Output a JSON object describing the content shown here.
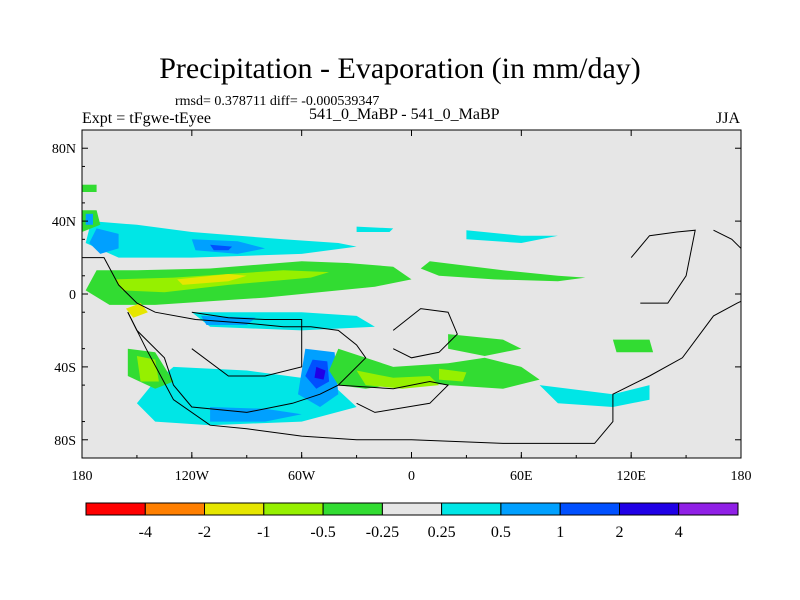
{
  "chart_data": {
    "type": "contour-map",
    "title": "Precipitation - Evaporation (in mm/day)",
    "stats": "rmsd= 0.378711 diff= -0.000539347",
    "left_label": "Expt = tFgwe-tEyee",
    "center_label": "541_0_MaBP - 541_0_MaBP",
    "right_label": "JJA",
    "x_ticks": [
      {
        "lon": -180,
        "label": "180"
      },
      {
        "lon": -120,
        "label": "120W"
      },
      {
        "lon": -60,
        "label": "60W"
      },
      {
        "lon": 0,
        "label": "0"
      },
      {
        "lon": 60,
        "label": "60E"
      },
      {
        "lon": 120,
        "label": "120E"
      },
      {
        "lon": 180,
        "label": "180"
      }
    ],
    "y_ticks": [
      {
        "lat": 80,
        "label": "80N"
      },
      {
        "lat": 40,
        "label": "40N"
      },
      {
        "lat": 0,
        "label": "0"
      },
      {
        "lat": -40,
        "label": "40S"
      },
      {
        "lat": -80,
        "label": "80S"
      }
    ],
    "xlim": [
      -180,
      180
    ],
    "ylim": [
      -90,
      90
    ],
    "colorbar": {
      "colors": [
        "#ff0000",
        "#ff7f00",
        "#e6e600",
        "#96f000",
        "#32dc32",
        "#e6e6e6",
        "#00e6e6",
        "#00a0ff",
        "#0050ff",
        "#2000e6",
        "#9020e6"
      ],
      "labels": [
        "-4",
        "-2",
        "-1",
        "-0.5",
        "-0.25",
        "0.25",
        "0.5",
        "1",
        "2",
        "4"
      ]
    },
    "background_color": "#e6e6e6",
    "features": [
      {
        "color": "#32dc32",
        "points": [
          [
            -172,
            13
          ],
          [
            -150,
            13
          ],
          [
            -110,
            14
          ],
          [
            -60,
            18
          ],
          [
            -35,
            17
          ],
          [
            -10,
            15
          ],
          [
            0,
            8
          ],
          [
            -20,
            4
          ],
          [
            -80,
            -2
          ],
          [
            -140,
            -6
          ],
          [
            -165,
            -6
          ],
          [
            -178,
            2
          ]
        ]
      },
      {
        "color": "#96f000",
        "points": [
          [
            -162,
            8
          ],
          [
            -130,
            9
          ],
          [
            -100,
            11
          ],
          [
            -70,
            13
          ],
          [
            -45,
            12
          ],
          [
            -55,
            9
          ],
          [
            -100,
            5
          ],
          [
            -135,
            1
          ],
          [
            -158,
            2
          ]
        ]
      },
      {
        "color": "#e6e600",
        "points": [
          [
            -128,
            8
          ],
          [
            -100,
            11
          ],
          [
            -90,
            10
          ],
          [
            -100,
            7
          ],
          [
            -125,
            5
          ]
        ]
      },
      {
        "color": "#e6e600",
        "points": [
          [
            -156,
            -8
          ],
          [
            -148,
            -5
          ],
          [
            -144,
            -10
          ],
          [
            -152,
            -13
          ]
        ]
      },
      {
        "color": "#32dc32",
        "points": [
          [
            10,
            18
          ],
          [
            50,
            13
          ],
          [
            80,
            10
          ],
          [
            95,
            9
          ],
          [
            80,
            7
          ],
          [
            45,
            8
          ],
          [
            15,
            10
          ],
          [
            5,
            14
          ]
        ]
      },
      {
        "color": "#00e6e6",
        "points": [
          [
            -175,
            40
          ],
          [
            -150,
            38
          ],
          [
            -120,
            34
          ],
          [
            -70,
            30
          ],
          [
            -40,
            28
          ],
          [
            -30,
            26
          ],
          [
            -60,
            22
          ],
          [
            -120,
            20
          ],
          [
            -160,
            20
          ],
          [
            -178,
            28
          ]
        ]
      },
      {
        "color": "#00a0ff",
        "points": [
          [
            -172,
            36
          ],
          [
            -160,
            33
          ],
          [
            -160,
            25
          ],
          [
            -170,
            22
          ],
          [
            -176,
            28
          ]
        ]
      },
      {
        "color": "#00a0ff",
        "points": [
          [
            -120,
            30
          ],
          [
            -95,
            29
          ],
          [
            -80,
            25
          ],
          [
            -95,
            22
          ],
          [
            -118,
            24
          ]
        ]
      },
      {
        "color": "#0050ff",
        "points": [
          [
            -110,
            27
          ],
          [
            -98,
            26
          ],
          [
            -100,
            24
          ],
          [
            -108,
            24
          ]
        ]
      },
      {
        "color": "#00e6e6",
        "points": [
          [
            -120,
            -10
          ],
          [
            -60,
            -10
          ],
          [
            -30,
            -12
          ],
          [
            -20,
            -18
          ],
          [
            -60,
            -20
          ],
          [
            -110,
            -18
          ]
        ]
      },
      {
        "color": "#00a0ff",
        "points": [
          [
            -115,
            -12
          ],
          [
            -85,
            -13
          ],
          [
            -90,
            -17
          ],
          [
            -112,
            -17
          ]
        ]
      },
      {
        "color": "#00e6e6",
        "points": [
          [
            -130,
            -40
          ],
          [
            -90,
            -42
          ],
          [
            -45,
            -48
          ],
          [
            -30,
            -62
          ],
          [
            -60,
            -70
          ],
          [
            -110,
            -72
          ],
          [
            -140,
            -70
          ],
          [
            -150,
            -60
          ],
          [
            -142,
            -50
          ]
        ]
      },
      {
        "color": "#00a0ff",
        "points": [
          [
            -110,
            -62
          ],
          [
            -80,
            -63
          ],
          [
            -60,
            -66
          ],
          [
            -80,
            -70
          ],
          [
            -110,
            -70
          ]
        ]
      },
      {
        "color": "#00a0ff",
        "points": [
          [
            -58,
            -30
          ],
          [
            -42,
            -32
          ],
          [
            -40,
            -55
          ],
          [
            -50,
            -62
          ],
          [
            -62,
            -55
          ]
        ]
      },
      {
        "color": "#0050ff",
        "points": [
          [
            -54,
            -36
          ],
          [
            -46,
            -37
          ],
          [
            -45,
            -48
          ],
          [
            -52,
            -52
          ],
          [
            -58,
            -45
          ]
        ]
      },
      {
        "color": "#2000e6",
        "points": [
          [
            -52,
            -40
          ],
          [
            -47,
            -42
          ],
          [
            -48,
            -47
          ],
          [
            -53,
            -46
          ]
        ]
      },
      {
        "color": "#32dc32",
        "points": [
          [
            -40,
            -30
          ],
          [
            -10,
            -40
          ],
          [
            20,
            -38
          ],
          [
            40,
            -35
          ],
          [
            60,
            -40
          ],
          [
            70,
            -47
          ],
          [
            50,
            -52
          ],
          [
            20,
            -50
          ],
          [
            0,
            -48
          ],
          [
            -25,
            -52
          ],
          [
            -40,
            -50
          ],
          [
            -45,
            -42
          ]
        ]
      },
      {
        "color": "#96f000",
        "points": [
          [
            -30,
            -42
          ],
          [
            -10,
            -46
          ],
          [
            10,
            -45
          ],
          [
            15,
            -50
          ],
          [
            -5,
            -52
          ],
          [
            -25,
            -50
          ]
        ]
      },
      {
        "color": "#96f000",
        "points": [
          [
            15,
            -41
          ],
          [
            30,
            -43
          ],
          [
            28,
            -48
          ],
          [
            15,
            -47
          ]
        ]
      },
      {
        "color": "#00e6e6",
        "points": [
          [
            70,
            -50
          ],
          [
            110,
            -55
          ],
          [
            130,
            -50
          ],
          [
            130,
            -58
          ],
          [
            110,
            -62
          ],
          [
            80,
            -60
          ]
        ]
      },
      {
        "color": "#32dc32",
        "points": [
          [
            20,
            -22
          ],
          [
            50,
            -25
          ],
          [
            60,
            -30
          ],
          [
            40,
            -34
          ],
          [
            20,
            -30
          ]
        ]
      },
      {
        "color": "#32dc32",
        "points": [
          [
            -155,
            -30
          ],
          [
            -140,
            -32
          ],
          [
            -130,
            -48
          ],
          [
            -140,
            -52
          ],
          [
            -155,
            -45
          ]
        ]
      },
      {
        "color": "#96f000",
        "points": [
          [
            -150,
            -34
          ],
          [
            -140,
            -36
          ],
          [
            -138,
            -48
          ],
          [
            -148,
            -48
          ]
        ]
      },
      {
        "color": "#32dc32",
        "points": [
          [
            -180,
            46
          ],
          [
            -172,
            46
          ],
          [
            -170,
            38
          ],
          [
            -180,
            34
          ]
        ]
      },
      {
        "color": "#00a0ff",
        "points": [
          [
            -178,
            44
          ],
          [
            -174,
            44
          ],
          [
            -174,
            38
          ],
          [
            -178,
            38
          ]
        ]
      },
      {
        "color": "#32dc32",
        "points": [
          [
            110,
            -25
          ],
          [
            130,
            -25
          ],
          [
            132,
            -32
          ],
          [
            112,
            -32
          ]
        ]
      },
      {
        "color": "#00e6e6",
        "points": [
          [
            -30,
            37
          ],
          [
            -10,
            36
          ],
          [
            -12,
            34
          ],
          [
            -30,
            34
          ]
        ]
      },
      {
        "color": "#00e6e6",
        "points": [
          [
            30,
            35
          ],
          [
            60,
            32
          ],
          [
            80,
            32
          ],
          [
            60,
            28
          ],
          [
            30,
            30
          ]
        ]
      },
      {
        "color": "#32dc32",
        "points": [
          [
            -180,
            60
          ],
          [
            -172,
            60
          ],
          [
            -172,
            56
          ],
          [
            -180,
            56
          ]
        ]
      }
    ],
    "coastlines": [
      {
        "points": [
          [
            -155,
            -10
          ],
          [
            -145,
            -30
          ],
          [
            -130,
            -58
          ],
          [
            -110,
            -72
          ],
          [
            -90,
            -74
          ],
          [
            -60,
            -78
          ],
          [
            -30,
            -80
          ],
          [
            0,
            -80
          ],
          [
            50,
            -82
          ],
          [
            100,
            -82
          ],
          [
            110,
            -70
          ],
          [
            110,
            -55
          ],
          [
            130,
            -45
          ],
          [
            148,
            -35
          ],
          [
            165,
            -12
          ],
          [
            178,
            -5
          ],
          [
            180,
            -4
          ]
        ]
      },
      {
        "points": [
          [
            -180,
            20
          ],
          [
            -168,
            20
          ],
          [
            -160,
            5
          ],
          [
            -150,
            -5
          ],
          [
            -140,
            -10
          ],
          [
            -118,
            -14
          ],
          [
            -90,
            -16
          ],
          [
            -70,
            -18
          ],
          [
            -55,
            -18
          ],
          [
            -40,
            -20
          ],
          [
            -30,
            -28
          ],
          [
            -25,
            -35
          ],
          [
            -40,
            -50
          ],
          [
            -50,
            -55
          ],
          [
            -65,
            -60
          ],
          [
            -90,
            -65
          ],
          [
            -120,
            -62
          ],
          [
            -130,
            -50
          ],
          [
            -135,
            -35
          ],
          [
            -150,
            -20
          ],
          [
            -155,
            -10
          ]
        ]
      },
      {
        "points": [
          [
            -120,
            -10
          ],
          [
            -100,
            -13
          ],
          [
            -80,
            -14
          ],
          [
            -60,
            -14
          ],
          [
            -60,
            -40
          ],
          [
            -80,
            -45
          ],
          [
            -100,
            -45
          ],
          [
            -120,
            -30
          ]
        ]
      },
      {
        "points": [
          [
            -40,
            -50
          ],
          [
            -10,
            -52
          ],
          [
            10,
            -48
          ],
          [
            20,
            -50
          ],
          [
            10,
            -60
          ],
          [
            -20,
            -65
          ],
          [
            -30,
            -60
          ]
        ]
      },
      {
        "points": [
          [
            -10,
            -20
          ],
          [
            5,
            -8
          ],
          [
            20,
            -10
          ],
          [
            25,
            -22
          ],
          [
            15,
            -32
          ],
          [
            0,
            -35
          ],
          [
            -10,
            -30
          ]
        ]
      },
      {
        "points": [
          [
            120,
            20
          ],
          [
            130,
            32
          ],
          [
            145,
            34
          ],
          [
            155,
            35
          ],
          [
            150,
            10
          ],
          [
            140,
            -5
          ],
          [
            125,
            -5
          ]
        ]
      },
      {
        "points": [
          [
            165,
            35
          ],
          [
            175,
            30
          ],
          [
            180,
            25
          ]
        ]
      }
    ]
  }
}
